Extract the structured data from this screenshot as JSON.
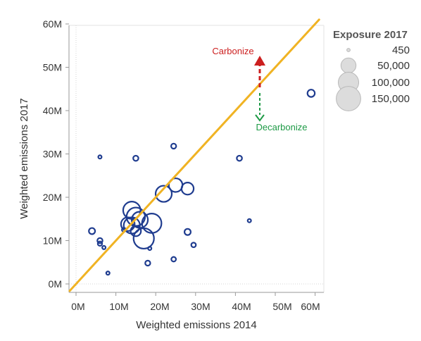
{
  "chart_data": {
    "type": "scatter",
    "xlabel": "Weighted emissions 2014",
    "ylabel": "Weighted emissions 2017",
    "x_ticks": [
      {
        "value": 0,
        "label": "0M"
      },
      {
        "value": 10,
        "label": "10M"
      },
      {
        "value": 20,
        "label": "20M"
      },
      {
        "value": 30,
        "label": "30M"
      },
      {
        "value": 40,
        "label": "40M"
      },
      {
        "value": 50,
        "label": "50M"
      },
      {
        "value": 60,
        "label": "60M"
      }
    ],
    "y_ticks": [
      {
        "value": 0,
        "label": "0M"
      },
      {
        "value": 10,
        "label": "10M"
      },
      {
        "value": 20,
        "label": "20M"
      },
      {
        "value": 30,
        "label": "30M"
      },
      {
        "value": 40,
        "label": "40M"
      },
      {
        "value": 50,
        "label": "50M"
      },
      {
        "value": 60,
        "label": "60M"
      }
    ],
    "xlim": [
      -2,
      60
    ],
    "ylim": [
      -2,
      61
    ],
    "grid": false,
    "reference_line": {
      "type": "y=x",
      "color": "#f0b323"
    },
    "point_color": "#1f3c8f",
    "points": [
      {
        "x": 59,
        "y": 44,
        "exposure": 8000
      },
      {
        "x": 28,
        "y": 22,
        "exposure": 30000
      },
      {
        "x": 25,
        "y": 22.8,
        "exposure": 40000
      },
      {
        "x": 22,
        "y": 20.8,
        "exposure": 60000
      },
      {
        "x": 14,
        "y": 17,
        "exposure": 70000
      },
      {
        "x": 15,
        "y": 15.5,
        "exposure": 80000
      },
      {
        "x": 16,
        "y": 14.8,
        "exposure": 60000
      },
      {
        "x": 19,
        "y": 14,
        "exposure": 90000
      },
      {
        "x": 14,
        "y": 13.5,
        "exposure": 60000
      },
      {
        "x": 13,
        "y": 13.8,
        "exposure": 40000
      },
      {
        "x": 15,
        "y": 12.2,
        "exposure": 20000
      },
      {
        "x": 17,
        "y": 10.5,
        "exposure": 100000
      },
      {
        "x": 24.5,
        "y": 31.8,
        "exposure": 2500
      },
      {
        "x": 15,
        "y": 29,
        "exposure": 3000
      },
      {
        "x": 41,
        "y": 29,
        "exposure": 3000
      },
      {
        "x": 4,
        "y": 12.2,
        "exposure": 5000
      },
      {
        "x": 28,
        "y": 12,
        "exposure": 5000
      },
      {
        "x": 6,
        "y": 10,
        "exposure": 3000
      },
      {
        "x": 6,
        "y": 9.3,
        "exposure": 1500
      },
      {
        "x": 29.5,
        "y": 9,
        "exposure": 2000
      },
      {
        "x": 18,
        "y": 4.8,
        "exposure": 2500
      },
      {
        "x": 24.5,
        "y": 5.7,
        "exposure": 2000
      },
      {
        "x": 6,
        "y": 29.3,
        "exposure": 450
      },
      {
        "x": 43.5,
        "y": 14.6,
        "exposure": 450
      },
      {
        "x": 7,
        "y": 8.4,
        "exposure": 450
      },
      {
        "x": 8,
        "y": 2.5,
        "exposure": 450
      },
      {
        "x": 18.5,
        "y": 8.2,
        "exposure": 450
      },
      {
        "x": 12,
        "y": 12.5,
        "exposure": 1000
      }
    ],
    "legend": {
      "title": "Exposure 2017",
      "placement": "top-right",
      "items": [
        {
          "label": "450",
          "exposure": 450
        },
        {
          "label": "50,000",
          "exposure": 50000
        },
        {
          "label": "100,000",
          "exposure": 100000
        },
        {
          "label": "150,000",
          "exposure": 150000
        }
      ]
    },
    "annotations": {
      "carbonize": {
        "label": "Carbonize",
        "color": "#cc1f1f"
      },
      "decarbonize": {
        "label": "Decarbonize",
        "color": "#1e9a46"
      }
    }
  }
}
